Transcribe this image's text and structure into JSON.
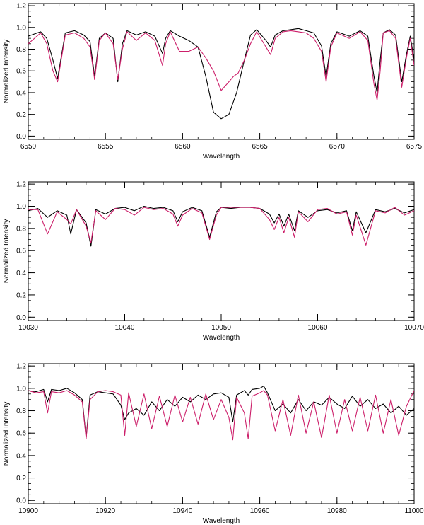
{
  "chart_data": [
    {
      "type": "line",
      "xlabel": "Wavelength",
      "ylabel": "Normalized Intensity",
      "xlim": [
        6550,
        6575
      ],
      "ylim": [
        -0.03,
        1.22
      ],
      "xticks": [
        6550,
        6555,
        6560,
        6565,
        6570,
        6575
      ],
      "xtick_labels": [
        "6550",
        "6555",
        "6560",
        "6565",
        "6570",
        "6575"
      ],
      "yticks": [
        0.0,
        0.2,
        0.4,
        0.6,
        0.8,
        1.0,
        1.2
      ],
      "ytick_labels": [
        "0.0",
        "0.2",
        "0.4",
        "0.6",
        "0.8",
        "1.0",
        "1.2"
      ],
      "colors": {
        "observed": "#000000",
        "model": "#cc1f6a"
      },
      "series": [
        {
          "color": "#000000",
          "x": [
            6550.0,
            6550.8,
            6551.2,
            6551.6,
            6551.9,
            6552.4,
            6553.0,
            6553.6,
            6554.0,
            6554.3,
            6554.6,
            6555.0,
            6555.5,
            6555.8,
            6556.1,
            6556.4,
            6557.0,
            6557.6,
            6558.2,
            6558.7,
            6558.9,
            6559.2,
            6559.8,
            6560.4,
            6561.0,
            6561.5,
            6562.0,
            6562.5,
            6563.0,
            6563.5,
            6564.0,
            6564.4,
            6564.8,
            6565.4,
            6565.7,
            6566.0,
            6566.5,
            6567.0,
            6567.5,
            6568.0,
            6568.5,
            6569.0,
            6569.3,
            6569.6,
            6570.0,
            6570.8,
            6571.5,
            6572.0,
            6572.4,
            6572.6,
            6572.8,
            6573.0,
            6573.4,
            6573.8,
            6574.2,
            6574.5,
            6574.75,
            6575.0
          ],
          "y": [
            0.92,
            0.96,
            0.9,
            0.7,
            0.53,
            0.95,
            0.97,
            0.93,
            0.87,
            0.55,
            0.9,
            0.95,
            0.9,
            0.5,
            0.85,
            0.97,
            0.93,
            0.96,
            0.92,
            0.76,
            0.9,
            0.97,
            0.92,
            0.88,
            0.82,
            0.55,
            0.22,
            0.16,
            0.2,
            0.4,
            0.7,
            0.93,
            0.98,
            0.88,
            0.82,
            0.93,
            0.97,
            0.98,
            0.99,
            0.97,
            0.95,
            0.83,
            0.55,
            0.85,
            0.96,
            0.92,
            0.97,
            0.92,
            0.55,
            0.4,
            0.7,
            0.95,
            0.98,
            0.93,
            0.5,
            0.75,
            0.92,
            0.7
          ]
        },
        {
          "color": "#cc1f6a",
          "x": [
            6550.0,
            6550.8,
            6551.2,
            6551.6,
            6551.9,
            6552.4,
            6553.0,
            6553.6,
            6554.0,
            6554.3,
            6554.6,
            6555.0,
            6555.5,
            6555.8,
            6556.1,
            6556.4,
            6557.0,
            6557.6,
            6558.2,
            6558.7,
            6558.9,
            6559.2,
            6559.8,
            6560.4,
            6561.0,
            6561.5,
            6562.0,
            6562.5,
            6563.0,
            6563.3,
            6563.6,
            6564.0,
            6564.4,
            6564.8,
            6565.4,
            6565.7,
            6566.0,
            6566.5,
            6567.0,
            6567.5,
            6568.0,
            6568.5,
            6569.0,
            6569.3,
            6569.6,
            6570.0,
            6570.8,
            6571.5,
            6572.0,
            6572.4,
            6572.6,
            6572.8,
            6573.0,
            6573.4,
            6573.8,
            6574.2,
            6574.5,
            6574.75,
            6575.0
          ],
          "y": [
            0.85,
            0.95,
            0.85,
            0.6,
            0.5,
            0.93,
            0.95,
            0.9,
            0.82,
            0.52,
            0.88,
            0.95,
            0.85,
            0.52,
            0.8,
            0.96,
            0.88,
            0.95,
            0.88,
            0.65,
            0.85,
            0.96,
            0.78,
            0.78,
            0.82,
            0.72,
            0.6,
            0.42,
            0.5,
            0.55,
            0.58,
            0.7,
            0.85,
            0.96,
            0.82,
            0.75,
            0.9,
            0.96,
            0.97,
            0.96,
            0.95,
            0.9,
            0.78,
            0.5,
            0.82,
            0.95,
            0.9,
            0.96,
            0.88,
            0.48,
            0.33,
            0.6,
            0.95,
            0.97,
            0.9,
            0.45,
            0.72,
            0.9,
            0.65
          ]
        }
      ]
    },
    {
      "type": "line",
      "xlabel": "Wavelength",
      "ylabel": "Normalized Intensity",
      "xlim": [
        10030,
        10070
      ],
      "ylim": [
        -0.03,
        1.22
      ],
      "xticks": [
        10030,
        10040,
        10050,
        10060,
        10070
      ],
      "xtick_labels": [
        "10030",
        "10040",
        "10050",
        "10060",
        "10070"
      ],
      "yticks": [
        0.0,
        0.2,
        0.4,
        0.6,
        0.8,
        1.0,
        1.2
      ],
      "ytick_labels": [
        "0.0",
        "0.2",
        "0.4",
        "0.6",
        "0.8",
        "1.0",
        "1.2"
      ],
      "colors": {
        "observed": "#000000",
        "model": "#cc1f6a"
      },
      "series": [
        {
          "color": "#000000",
          "x": [
            10030.0,
            10031.0,
            10032.0,
            10033.0,
            10034.0,
            10034.4,
            10035.0,
            10036.0,
            10036.5,
            10037.0,
            10038.0,
            10039.0,
            10040.0,
            10041.0,
            10042.0,
            10043.0,
            10044.0,
            10045.0,
            10045.5,
            10046.0,
            10047.0,
            10048.0,
            10048.8,
            10049.5,
            10050.0,
            10051.0,
            10052.0,
            10053.0,
            10054.0,
            10055.0,
            10055.5,
            10056.0,
            10056.5,
            10057.0,
            10057.6,
            10058.0,
            10059.0,
            10060.0,
            10061.0,
            10062.0,
            10063.0,
            10063.6,
            10064.0,
            10065.0,
            10066.0,
            10067.0,
            10068.0,
            10069.0,
            10070.0
          ],
          "y": [
            0.96,
            0.98,
            0.9,
            0.96,
            0.92,
            0.75,
            0.97,
            0.85,
            0.64,
            0.97,
            0.93,
            0.98,
            0.99,
            0.96,
            1.0,
            0.98,
            0.99,
            0.96,
            0.86,
            0.95,
            0.99,
            0.96,
            0.72,
            0.95,
            0.99,
            0.98,
            0.99,
            0.99,
            0.98,
            0.93,
            0.85,
            0.93,
            0.82,
            0.93,
            0.78,
            0.96,
            0.9,
            0.96,
            0.97,
            0.94,
            0.96,
            0.78,
            0.95,
            0.76,
            0.97,
            0.95,
            0.98,
            0.94,
            0.97
          ]
        },
        {
          "color": "#cc1f6a",
          "x": [
            10030.0,
            10031.0,
            10032.0,
            10033.0,
            10034.0,
            10034.4,
            10035.0,
            10036.0,
            10036.5,
            10037.0,
            10038.0,
            10039.0,
            10040.0,
            10041.0,
            10042.0,
            10043.0,
            10044.0,
            10045.0,
            10045.5,
            10046.0,
            10047.0,
            10048.0,
            10048.8,
            10049.5,
            10050.0,
            10051.0,
            10052.0,
            10053.0,
            10054.0,
            10055.0,
            10055.5,
            10056.0,
            10056.5,
            10057.0,
            10057.6,
            10058.0,
            10059.0,
            10060.0,
            10061.0,
            10062.0,
            10063.0,
            10063.6,
            10064.0,
            10065.0,
            10066.0,
            10067.0,
            10068.0,
            10069.0,
            10070.0
          ],
          "y": [
            0.97,
            0.97,
            0.75,
            0.95,
            0.88,
            0.84,
            0.97,
            0.82,
            0.67,
            0.96,
            0.88,
            0.98,
            0.97,
            0.92,
            0.99,
            0.97,
            0.98,
            0.93,
            0.82,
            0.92,
            0.98,
            0.94,
            0.7,
            0.92,
            0.99,
            0.99,
            0.99,
            0.99,
            0.98,
            0.88,
            0.79,
            0.9,
            0.76,
            0.9,
            0.72,
            0.95,
            0.86,
            0.97,
            0.98,
            0.93,
            0.95,
            0.74,
            0.92,
            0.65,
            0.96,
            0.94,
            0.99,
            0.92,
            0.96
          ]
        }
      ]
    },
    {
      "type": "line",
      "xlabel": "Wavelength",
      "ylabel": "Normalized Intensity",
      "xlim": [
        10900,
        11000
      ],
      "ylim": [
        -0.03,
        1.22
      ],
      "xticks": [
        10900,
        10920,
        10940,
        10960,
        10980,
        11000
      ],
      "xtick_labels": [
        "10900",
        "10920",
        "10940",
        "10960",
        "10980",
        "11000"
      ],
      "yticks": [
        0.0,
        0.2,
        0.4,
        0.6,
        0.8,
        1.0,
        1.2
      ],
      "ytick_labels": [
        "0.0",
        "0.2",
        "0.4",
        "0.6",
        "0.8",
        "1.0",
        "1.2"
      ],
      "colors": {
        "observed": "#000000",
        "model": "#cc1f6a"
      },
      "series": [
        {
          "color": "#000000",
          "x": [
            10900,
            10902,
            10904,
            10905,
            10906,
            10908,
            10910,
            10912,
            10914,
            10915,
            10916,
            10918,
            10920,
            10922,
            10924,
            10925,
            10926,
            10928,
            10930,
            10932,
            10934,
            10936,
            10938,
            10940,
            10942,
            10944,
            10946,
            10948,
            10950,
            10952,
            10953,
            10954,
            10956,
            10957,
            10958,
            10960,
            10961,
            10962,
            10964,
            10966,
            10968,
            10970,
            10972,
            10974,
            10976,
            10978,
            10980,
            10982,
            10984,
            10986,
            10988,
            10990,
            10992,
            10994,
            10996,
            10998,
            11000
          ],
          "y": [
            0.98,
            0.97,
            0.99,
            0.88,
            0.99,
            0.98,
            1.0,
            0.96,
            0.9,
            0.56,
            0.94,
            0.97,
            0.96,
            0.95,
            0.85,
            0.72,
            0.78,
            0.82,
            0.76,
            0.88,
            0.8,
            0.9,
            0.84,
            0.92,
            0.88,
            0.94,
            0.9,
            0.95,
            0.96,
            0.92,
            0.7,
            0.94,
            0.98,
            0.94,
            0.99,
            1.0,
            1.02,
            0.96,
            0.8,
            0.86,
            0.78,
            0.9,
            0.8,
            0.88,
            0.85,
            0.92,
            0.86,
            0.82,
            0.93,
            0.84,
            0.9,
            0.82,
            0.86,
            0.78,
            0.84,
            0.76,
            0.82
          ]
        },
        {
          "color": "#cc1f6a",
          "x": [
            10900,
            10902,
            10904,
            10905,
            10906,
            10908,
            10910,
            10912,
            10914,
            10915,
            10916,
            10918,
            10920,
            10922,
            10924,
            10925,
            10926,
            10928,
            10930,
            10932,
            10934,
            10936,
            10938,
            10940,
            10942,
            10944,
            10946,
            10948,
            10950,
            10952,
            10953,
            10954,
            10956,
            10957,
            10958,
            10960,
            10961,
            10962,
            10964,
            10966,
            10968,
            10970,
            10972,
            10974,
            10976,
            10978,
            10980,
            10982,
            10984,
            10986,
            10988,
            10990,
            10992,
            10994,
            10996,
            10998,
            11000
          ],
          "y": [
            0.98,
            0.96,
            0.97,
            0.78,
            0.97,
            0.96,
            0.98,
            0.94,
            0.88,
            0.55,
            0.9,
            0.97,
            0.98,
            0.97,
            0.94,
            0.58,
            0.96,
            0.66,
            0.95,
            0.64,
            0.93,
            0.66,
            0.94,
            0.7,
            0.92,
            0.68,
            0.95,
            0.72,
            0.9,
            0.74,
            0.54,
            0.92,
            0.78,
            0.55,
            0.93,
            0.96,
            0.98,
            0.94,
            0.62,
            0.9,
            0.58,
            0.94,
            0.6,
            0.88,
            0.56,
            0.94,
            0.6,
            0.9,
            0.62,
            0.92,
            0.62,
            0.94,
            0.6,
            0.9,
            0.58,
            0.84,
            0.98
          ]
        }
      ]
    }
  ]
}
